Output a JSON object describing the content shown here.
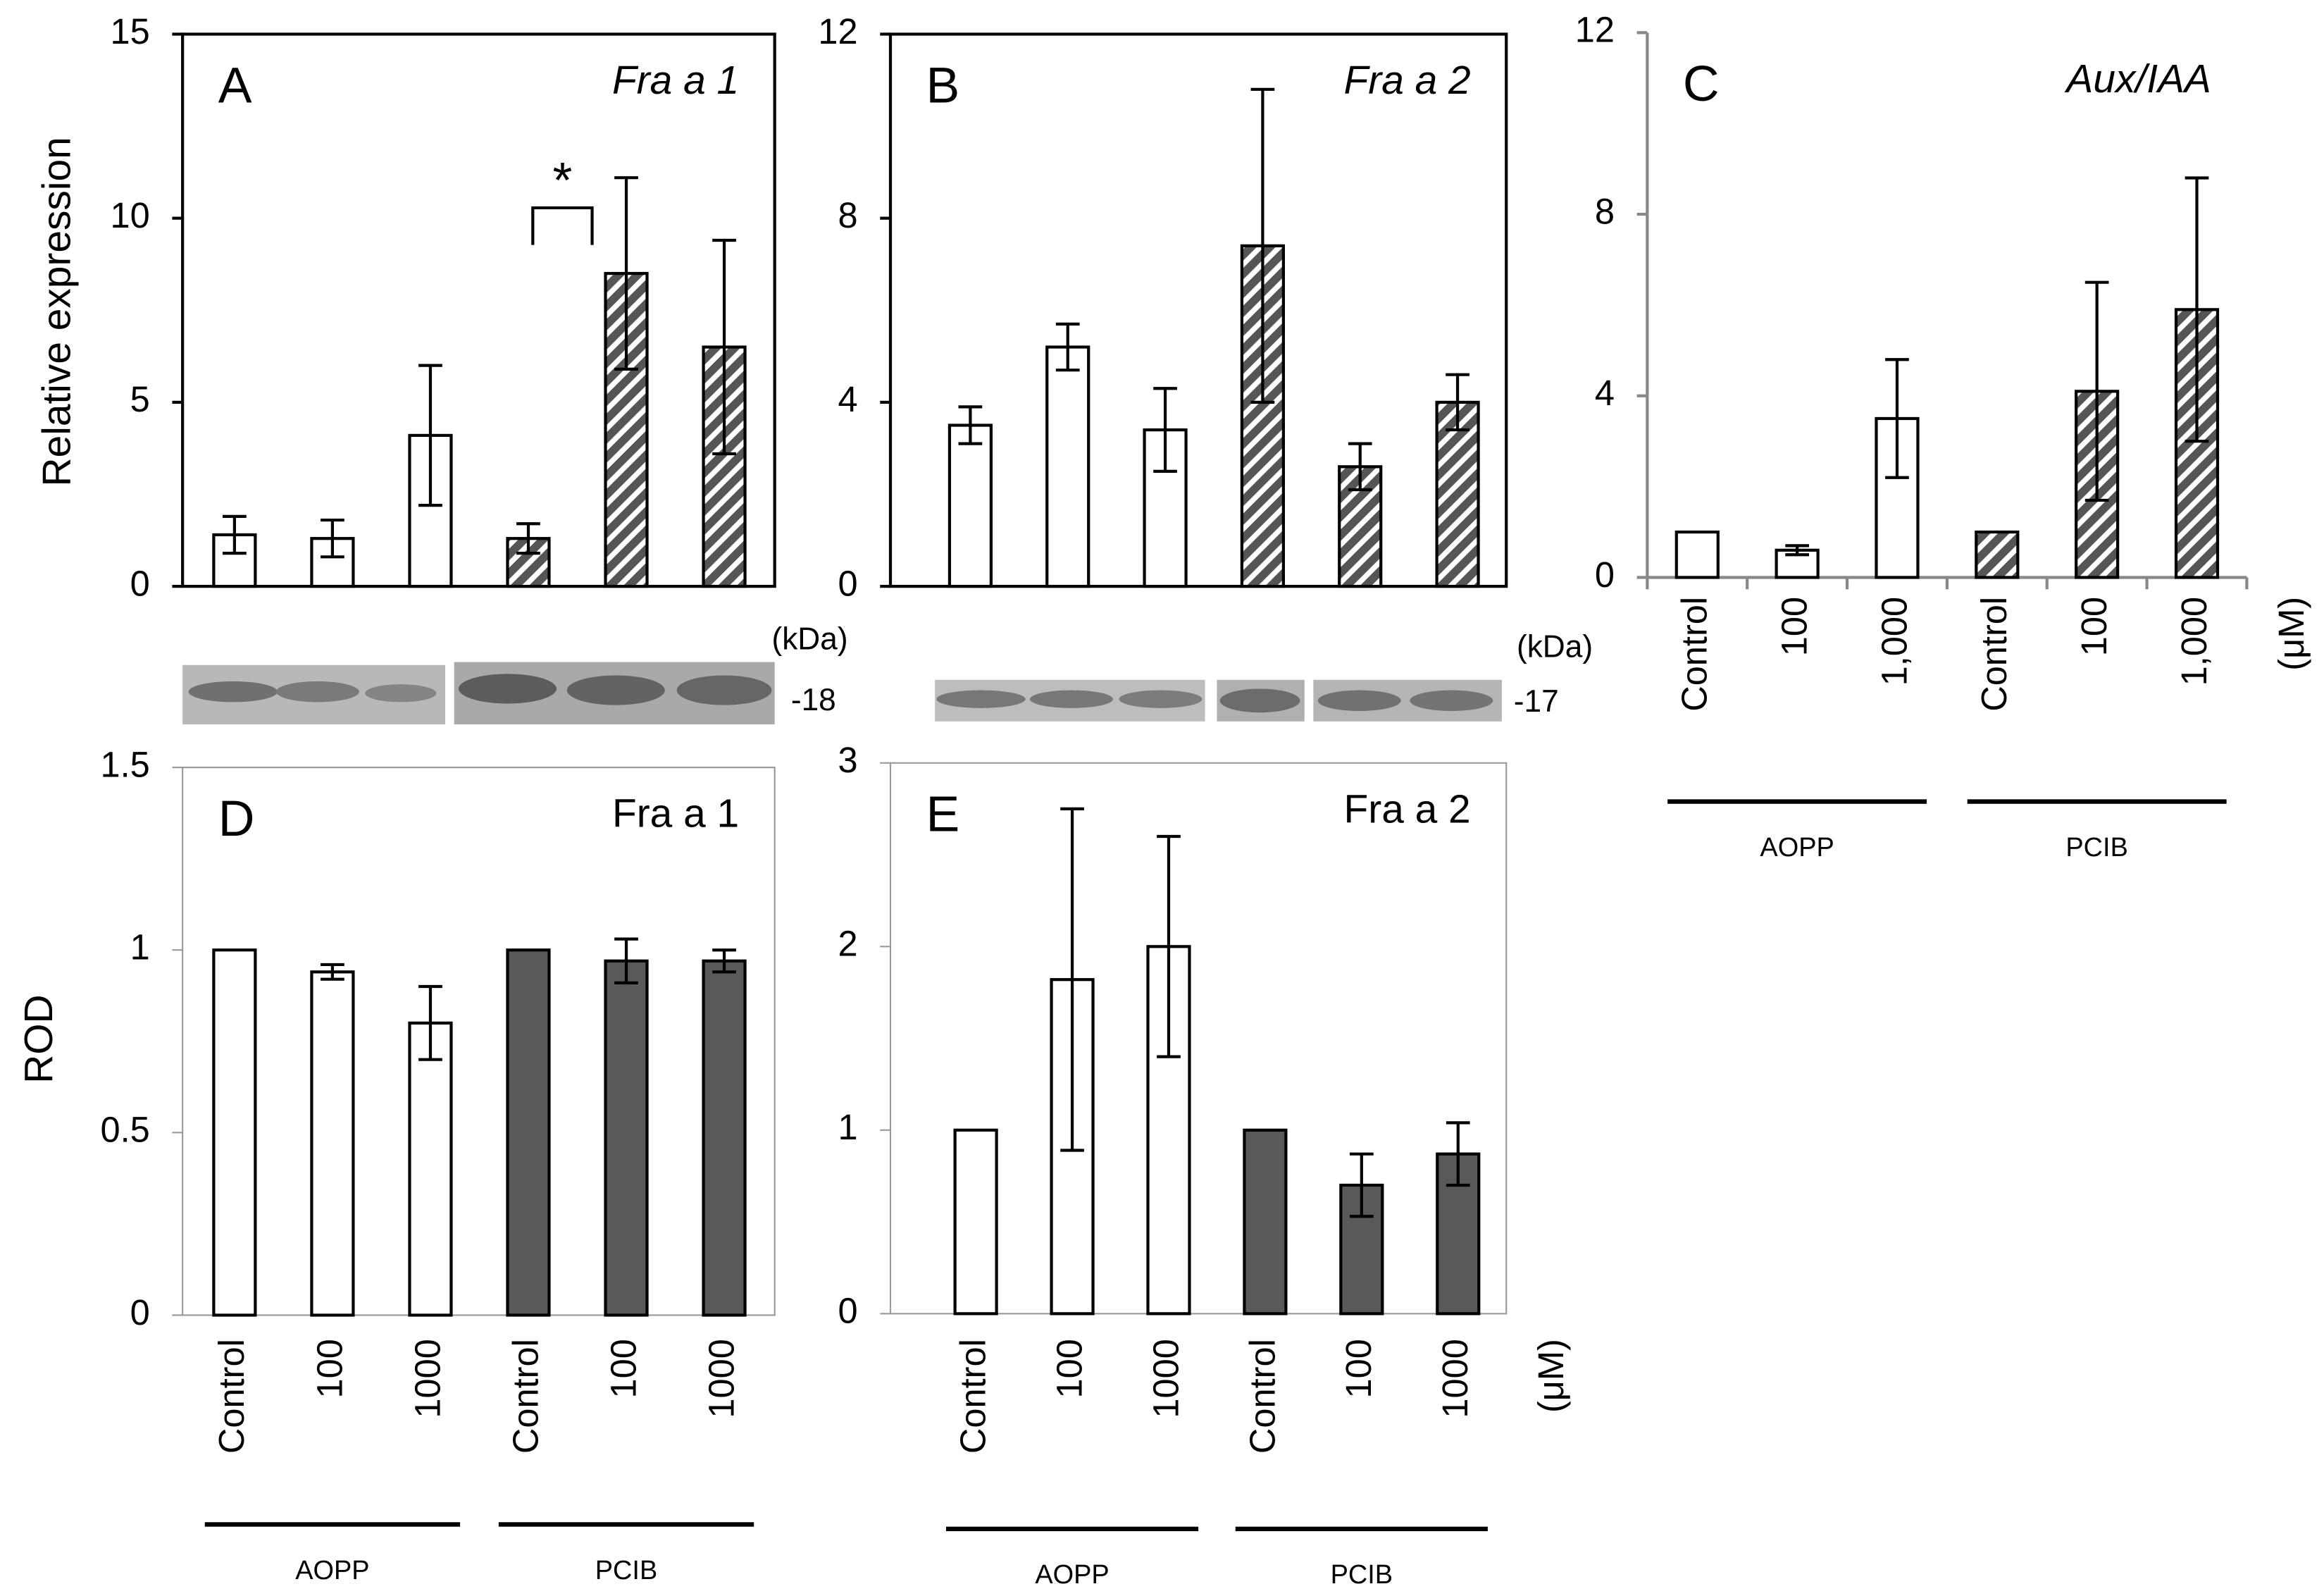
{
  "chart_data": [
    {
      "type": "bar",
      "panel": "A",
      "title": "Fra a 1",
      "ylabel": "Relative expression",
      "values": [
        1.4,
        1.3,
        4.1,
        1.3,
        8.5,
        6.5
      ],
      "errors": [
        0.5,
        0.5,
        1.9,
        0.4,
        2.6,
        2.9
      ],
      "colors": [
        "#ffffff",
        "#ffffff",
        "#ffffff",
        "#555555",
        "#555555",
        "#555555"
      ],
      "hatched": [
        false,
        false,
        false,
        true,
        true,
        true
      ],
      "ylim": [
        0,
        15
      ],
      "yticks": [
        0,
        5,
        10,
        15
      ],
      "annotation": "*",
      "blot_unit": "(kDa)",
      "blot_marker": "-18"
    },
    {
      "type": "bar",
      "panel": "B",
      "title": "Fra a 2",
      "values": [
        3.5,
        5.2,
        3.4,
        7.4,
        2.6,
        4.0
      ],
      "errors": [
        0.4,
        0.5,
        0.9,
        3.4,
        0.5,
        0.6
      ],
      "colors": [
        "#ffffff",
        "#ffffff",
        "#ffffff",
        "#555555",
        "#555555",
        "#555555"
      ],
      "hatched": [
        false,
        false,
        false,
        true,
        true,
        true
      ],
      "ylim": [
        0,
        12
      ],
      "yticks": [
        0,
        4,
        8,
        12
      ],
      "blot_unit": "(kDa)",
      "blot_marker": "-17"
    },
    {
      "type": "bar",
      "panel": "C",
      "title": "Aux/IAA",
      "categories": [
        "Control",
        "100",
        "1,000",
        "Control",
        "100",
        "1,000"
      ],
      "unit": "(μM)",
      "groups": [
        "AOPP",
        "PCIB"
      ],
      "values": [
        1.0,
        0.6,
        3.5,
        1.0,
        4.1,
        5.9
      ],
      "errors": [
        null,
        0.1,
        1.3,
        null,
        2.4,
        2.9
      ],
      "colors": [
        "#ffffff",
        "#ffffff",
        "#ffffff",
        "#555555",
        "#555555",
        "#555555"
      ],
      "hatched": [
        false,
        false,
        false,
        true,
        true,
        true
      ],
      "ylim": [
        0,
        12
      ],
      "yticks": [
        0,
        4,
        8,
        12
      ]
    },
    {
      "type": "bar",
      "panel": "D",
      "title": "Fra a 1",
      "ylabel": "ROD",
      "categories": [
        "Control",
        "100",
        "1000",
        "Control",
        "100",
        "1000"
      ],
      "groups": [
        "AOPP",
        "PCIB"
      ],
      "values": [
        1,
        0.94,
        0.8,
        1,
        0.97,
        0.97
      ],
      "errors": [
        null,
        0.02,
        0.1,
        null,
        0.06,
        0.03
      ],
      "colors": [
        "#ffffff",
        "#ffffff",
        "#ffffff",
        "#595959",
        "#595959",
        "#595959"
      ],
      "hatched": [
        false,
        false,
        false,
        false,
        false,
        false
      ],
      "ylim": [
        0,
        1.5
      ],
      "yticks": [
        0,
        0.5,
        1,
        1.5
      ]
    },
    {
      "type": "bar",
      "panel": "E",
      "title": "Fra a 2",
      "categories": [
        "Control",
        "100",
        "1000",
        "Control",
        "100",
        "1000"
      ],
      "unit": "(μM)",
      "groups": [
        "AOPP",
        "PCIB"
      ],
      "values": [
        1,
        1.82,
        2.0,
        1,
        0.7,
        0.87
      ],
      "errors": [
        null,
        0.93,
        0.6,
        null,
        0.17,
        0.17
      ],
      "colors": [
        "#ffffff",
        "#ffffff",
        "#ffffff",
        "#595959",
        "#595959",
        "#595959"
      ],
      "hatched": [
        false,
        false,
        false,
        false,
        false,
        false
      ],
      "ylim": [
        0,
        3
      ],
      "yticks": [
        0,
        1,
        2,
        3
      ]
    }
  ]
}
